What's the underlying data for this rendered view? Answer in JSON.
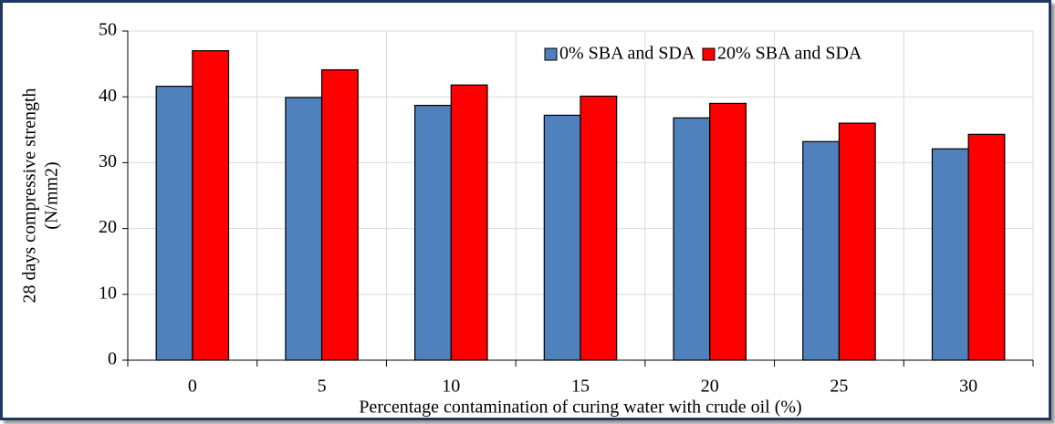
{
  "chart_data": {
    "type": "bar",
    "categories": [
      "0",
      "5",
      "10",
      "15",
      "20",
      "25",
      "30"
    ],
    "series": [
      {
        "name": "0% SBA and SDA",
        "color": "#4f81bd",
        "values": [
          41.6,
          39.9,
          38.7,
          37.2,
          36.8,
          33.2,
          32.1
        ]
      },
      {
        "name": "20% SBA and SDA",
        "color": "#ff0000",
        "values": [
          47.0,
          44.1,
          41.8,
          40.1,
          39.0,
          36.0,
          34.3
        ]
      }
    ],
    "x_label": "Percentage contamination of curing water with crude oil (%)",
    "y_label": [
      "28 days compressive strength",
      "(N/mm2)"
    ],
    "ylim": [
      0,
      50
    ],
    "yticks": [
      0,
      10,
      20,
      30,
      40,
      50
    ],
    "grid": true,
    "legend": "top-right"
  }
}
